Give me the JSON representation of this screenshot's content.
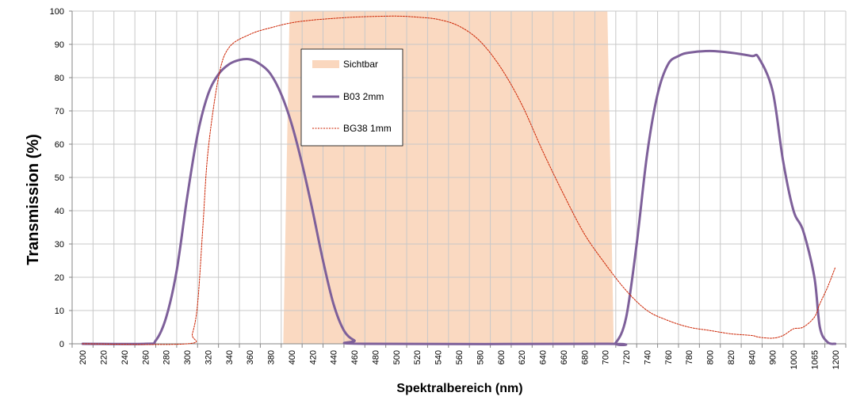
{
  "chart_data": {
    "type": "line",
    "title": "",
    "xlabel": "Spektralbereich (nm)",
    "ylabel": "Transmission (%)",
    "ylim": [
      0,
      100
    ],
    "y_ticks": [
      0,
      10,
      20,
      30,
      40,
      50,
      60,
      70,
      80,
      90,
      100
    ],
    "x_tick_labels": [
      "200",
      "220",
      "240",
      "260",
      "280",
      "300",
      "320",
      "340",
      "360",
      "380",
      "400",
      "420",
      "440",
      "460",
      "480",
      "500",
      "520",
      "540",
      "560",
      "580",
      "600",
      "620",
      "640",
      "660",
      "680",
      "700",
      "720",
      "740",
      "760",
      "780",
      "800",
      "820",
      "840",
      "900",
      "1000",
      "1065",
      "1200"
    ],
    "x_axis_note": "non-uniform axis: uniform 20 nm spacing from 200 to 840 nm, then categories 900, 1000, 1065, 1200",
    "grid": true,
    "legend_position": "top-left inside plot",
    "visible_band": {
      "name": "Sichtbar",
      "x_range": [
        395,
        705
      ],
      "color": "#FAD7BE"
    },
    "series": [
      {
        "name": "B03 2mm",
        "style": "solid",
        "color": "#7E609A",
        "points": [
          [
            200,
            0
          ],
          [
            260,
            0
          ],
          [
            270,
            1
          ],
          [
            280,
            8
          ],
          [
            290,
            22
          ],
          [
            300,
            44
          ],
          [
            310,
            63
          ],
          [
            320,
            75
          ],
          [
            330,
            81
          ],
          [
            340,
            84
          ],
          [
            350,
            85.3
          ],
          [
            360,
            85.5
          ],
          [
            370,
            84
          ],
          [
            380,
            81
          ],
          [
            390,
            75
          ],
          [
            400,
            66
          ],
          [
            410,
            54
          ],
          [
            420,
            40
          ],
          [
            430,
            25
          ],
          [
            440,
            12
          ],
          [
            450,
            4
          ],
          [
            460,
            1
          ],
          [
            470,
            0
          ],
          [
            700,
            0
          ],
          [
            710,
            0.3
          ],
          [
            720,
            8
          ],
          [
            730,
            30
          ],
          [
            740,
            57
          ],
          [
            750,
            75
          ],
          [
            760,
            84
          ],
          [
            770,
            86.5
          ],
          [
            780,
            87.5
          ],
          [
            800,
            88
          ],
          [
            820,
            87.5
          ],
          [
            840,
            86.5
          ],
          [
            860,
            86
          ],
          [
            900,
            76
          ],
          [
            950,
            55
          ],
          [
            1000,
            40
          ],
          [
            1030,
            34
          ],
          [
            1065,
            20
          ],
          [
            1100,
            5
          ],
          [
            1150,
            0.5
          ],
          [
            1200,
            0
          ]
        ]
      },
      {
        "name": "BG38 1mm",
        "style": "dashed",
        "color": "#CC2200",
        "points": [
          [
            200,
            0
          ],
          [
            300,
            0
          ],
          [
            305,
            3
          ],
          [
            310,
            12
          ],
          [
            315,
            35
          ],
          [
            320,
            58
          ],
          [
            330,
            80
          ],
          [
            340,
            89
          ],
          [
            360,
            93
          ],
          [
            380,
            95
          ],
          [
            400,
            96.5
          ],
          [
            420,
            97.3
          ],
          [
            440,
            97.8
          ],
          [
            460,
            98.2
          ],
          [
            480,
            98.4
          ],
          [
            500,
            98.5
          ],
          [
            520,
            98.2
          ],
          [
            540,
            97.5
          ],
          [
            560,
            95.5
          ],
          [
            580,
            91
          ],
          [
            600,
            83
          ],
          [
            620,
            72
          ],
          [
            640,
            58
          ],
          [
            660,
            45
          ],
          [
            680,
            33
          ],
          [
            700,
            24
          ],
          [
            720,
            16
          ],
          [
            740,
            10
          ],
          [
            760,
            7
          ],
          [
            780,
            5
          ],
          [
            800,
            4
          ],
          [
            820,
            3
          ],
          [
            840,
            2.5
          ],
          [
            860,
            2
          ],
          [
            900,
            1.7
          ],
          [
            950,
            2.5
          ],
          [
            1000,
            4.5
          ],
          [
            1030,
            5
          ],
          [
            1065,
            8
          ],
          [
            1100,
            12
          ],
          [
            1150,
            17
          ],
          [
            1200,
            23
          ]
        ]
      }
    ]
  }
}
